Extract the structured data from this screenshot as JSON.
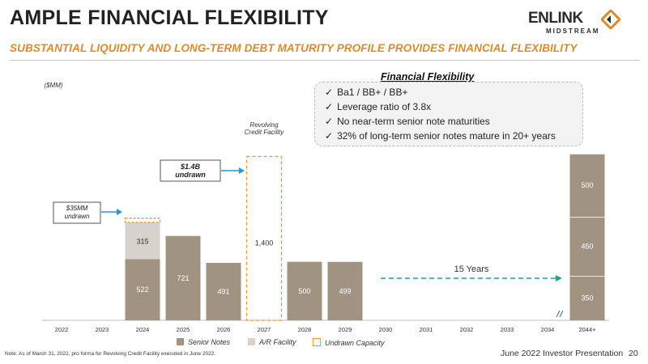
{
  "header": {
    "title": "AMPLE FINANCIAL FLEXIBILITY",
    "subtitle": "SUBSTANTIAL LIQUIDITY AND LONG-TERM DEBT MATURITY PROFILE PROVIDES FINANCIAL FLEXIBILITY",
    "logo_text": "ENLINK",
    "logo_sub": "MIDSTREAM"
  },
  "flexibility": {
    "title": "Financial Flexibility",
    "items": [
      "Ba1 / BB+ / BB+",
      "Leverage ratio of 3.8x",
      "No near-term senior note maturities",
      "32% of long-term senior notes mature in 20+ years"
    ]
  },
  "footer": {
    "note": "Note: As of March 31, 2022, pro forma for Revolving Credit Facility executed in June 2022.",
    "presentation": "June 2022 Investor Presentation",
    "page": "20"
  },
  "colors": {
    "senior_notes": "#a09382",
    "ar_facility": "#d7d2cb",
    "undrawn": "#e1973a",
    "arrow": "#2798c9",
    "accent": "#d98b2b"
  },
  "chart_data": {
    "type": "bar",
    "unit_label": "($MM)",
    "categories": [
      "2022",
      "2023",
      "2024",
      "2025",
      "2026",
      "2027",
      "2028",
      "2029",
      "2030",
      "2031",
      "2032",
      "2033",
      "2034",
      "2044+"
    ],
    "series": [
      {
        "name": "Senior Notes",
        "values": [
          0,
          0,
          522,
          721,
          491,
          0,
          500,
          499,
          0,
          0,
          0,
          0,
          0,
          0
        ]
      },
      {
        "name": "A/R Facility",
        "values": [
          0,
          0,
          315,
          0,
          0,
          0,
          0,
          0,
          0,
          0,
          0,
          0,
          0,
          0
        ]
      },
      {
        "name": "Undrawn Capacity",
        "values": [
          0,
          0,
          35,
          0,
          0,
          1400,
          0,
          0,
          0,
          0,
          0,
          0,
          0,
          0
        ]
      }
    ],
    "stack_2044": [
      350,
      450,
      500
    ],
    "labels": {
      "revolver": "Revolving Credit Facility",
      "revolver_value": "1,400",
      "undrawn_14b": "$1.4B undrawn",
      "undrawn_35": "$35MM undrawn",
      "years": "15 Years"
    },
    "legend_placement": "bottom"
  }
}
